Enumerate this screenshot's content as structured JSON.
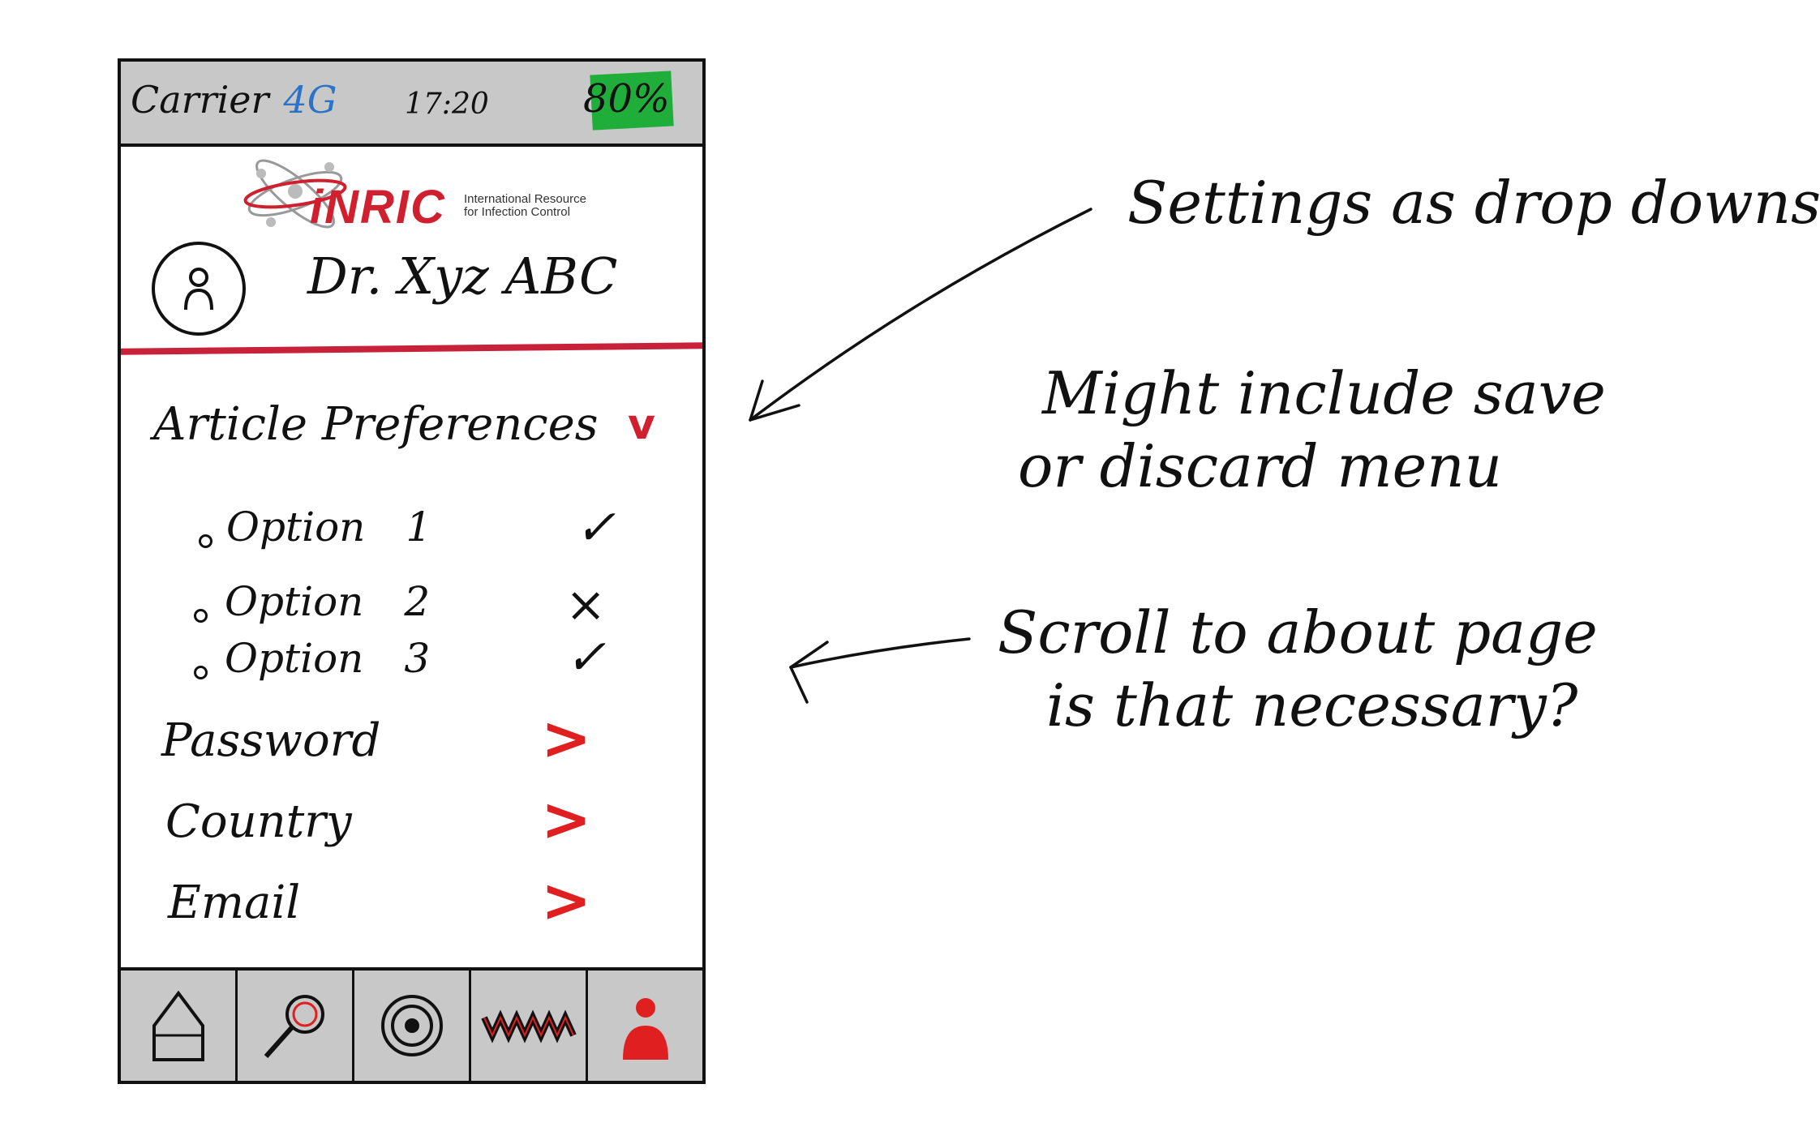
{
  "status_bar": {
    "carrier": "Carrier",
    "signal": "4G",
    "time": "17:20",
    "battery": "80%",
    "battery_color": "#1fae3a"
  },
  "logo": {
    "wordmark": "iNRIC",
    "tagline_line1": "International Resource",
    "tagline_line2": "for Infection Control"
  },
  "profile": {
    "name": "Dr. Xyz ABC",
    "icon": "user-icon"
  },
  "settings": {
    "article_preferences": {
      "label": "Article Preferences",
      "icon": "chevron-down-icon",
      "options": [
        {
          "label": "Option",
          "number": "1",
          "state": "✓"
        },
        {
          "label": "Option",
          "number": "2",
          "state": "×"
        },
        {
          "label": "Option",
          "number": "3",
          "state": "✓"
        }
      ]
    },
    "rows": [
      {
        "label": "Password",
        "icon": "chevron-right-icon"
      },
      {
        "label": "Country",
        "icon": "chevron-right-icon"
      },
      {
        "label": "Email",
        "icon": "chevron-right-icon"
      }
    ]
  },
  "tabbar": {
    "tabs": [
      {
        "icon": "home-icon"
      },
      {
        "icon": "search-icon"
      },
      {
        "icon": "target-icon"
      },
      {
        "icon": "activity-icon"
      },
      {
        "icon": "profile-icon",
        "active": true
      }
    ],
    "active_color": "#e02020"
  },
  "annotations": {
    "note1": "Settings as drop downs",
    "note2_line1": "Might include save",
    "note2_line2": "or discard menu",
    "note3_line1": "Scroll to about page",
    "note3_line2": "is that necessary?"
  },
  "colors": {
    "accent_red": "#c8213a",
    "bar_gray": "#c8c8c8",
    "signal_blue": "#2a73c9"
  }
}
